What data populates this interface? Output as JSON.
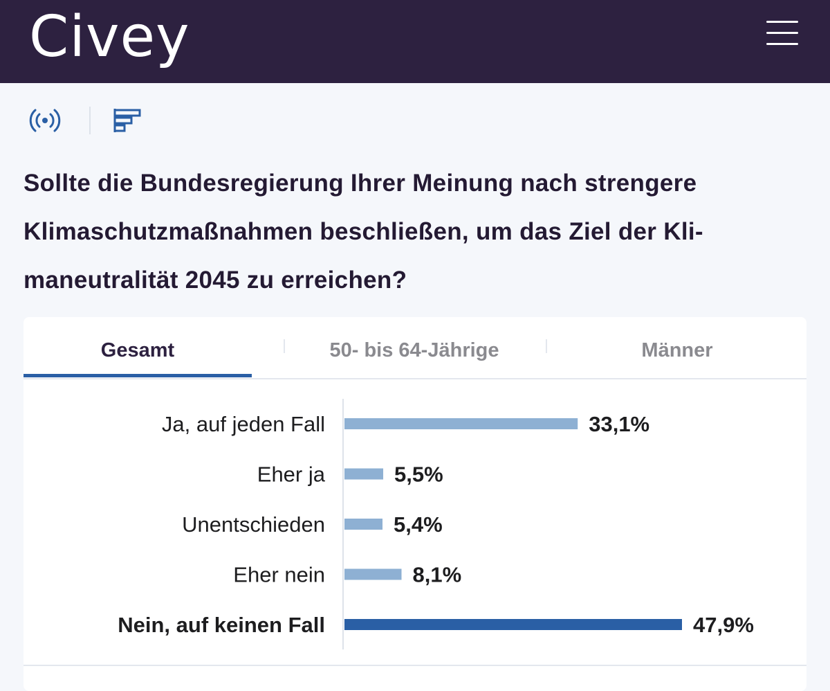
{
  "header": {
    "logo": "Civey",
    "menu_icon": "hamburger-menu-icon",
    "background": "#2d2140"
  },
  "toolbar": {
    "live_icon": "broadcast-icon",
    "chart_icon": "bar-chart-icon",
    "icon_color": "#2a5fa5"
  },
  "question": {
    "line1": "Sollte die Bundesregierung Ihrer Meinung nach strengere",
    "line2": "Klimaschutzmaßnahmen beschließen, um das Ziel der Kli-",
    "line3": "maneutralität 2045 zu erreichen?"
  },
  "tabs": [
    {
      "label": "Gesamt",
      "active": true
    },
    {
      "label": "50- bis 64-Jährige",
      "active": false
    },
    {
      "label": "Männer",
      "active": false
    }
  ],
  "chart_data": {
    "type": "bar",
    "orientation": "horizontal",
    "categories": [
      "Ja, auf jeden Fall",
      "Eher ja",
      "Unentschieden",
      "Eher nein",
      "Nein, auf keinen Fall"
    ],
    "values": [
      33.1,
      5.5,
      5.4,
      8.1,
      47.9
    ],
    "value_labels": [
      "33,1%",
      "5,5%",
      "5,4%",
      "8,1%",
      "47,9%"
    ],
    "highlight_index": 4,
    "colors": {
      "bar": "#8eb0d3",
      "highlight": "#2a5fa5"
    },
    "xlim": [
      0,
      47.9
    ],
    "grid": false
  }
}
